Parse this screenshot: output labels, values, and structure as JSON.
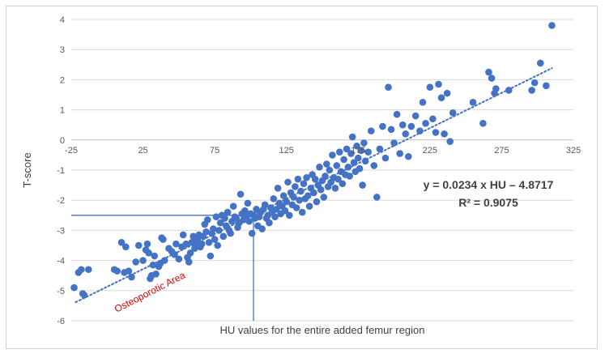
{
  "chart_data": {
    "type": "scatter",
    "title": "",
    "xlabel": "HU values for the entire added femur region",
    "ylabel": "T-score",
    "xlim": [
      -25,
      325
    ],
    "ylim": [
      -6,
      4
    ],
    "x_ticks": [
      "-25",
      "25",
      "75",
      "125",
      "175",
      "225",
      "275",
      "325"
    ],
    "x_tick_values": [
      -25,
      25,
      75,
      125,
      175,
      225,
      275,
      325
    ],
    "y_ticks": [
      "-6",
      "-5",
      "-4",
      "-3",
      "-2",
      "-1",
      "0",
      "1",
      "2",
      "3",
      "4"
    ],
    "y_tick_values": [
      -6,
      -5,
      -4,
      -3,
      -2,
      -1,
      0,
      1,
      2,
      3,
      4
    ],
    "grid": "horizontal",
    "marker_color": "#4472c4",
    "trendline": {
      "slope": 0.0234,
      "intercept": -4.8717,
      "x_range": [
        -22,
        310
      ],
      "style": "dotted",
      "color": "#4472c4"
    },
    "equation_line1": "y = 0.0234 x HU – 4.8717",
    "equation_line2": "R² = 0.9075",
    "annotation": {
      "text": "Osteoporotic Area",
      "color": "#e00000",
      "rotation_deg": -27
    },
    "reference_lines": {
      "color": "#4472c4",
      "horizontal_y": -2.5,
      "horizontal_x_range": [
        -25,
        102
      ],
      "vertical_x": 102,
      "vertical_y_range": [
        -6,
        -2.5
      ]
    },
    "series": [
      {
        "points": [
          [
            -23,
            -4.9
          ],
          [
            -20,
            -4.4
          ],
          [
            -18,
            -4.3
          ],
          [
            -17,
            -5.1
          ],
          [
            -16,
            -5.15
          ],
          [
            -13,
            -4.3
          ],
          [
            5,
            -4.3
          ],
          [
            7,
            -4.35
          ],
          [
            10,
            -3.4
          ],
          [
            12,
            -4.4
          ],
          [
            13,
            -3.55
          ],
          [
            15,
            -4.35
          ],
          [
            17,
            -4.55
          ],
          [
            20,
            -4.05
          ],
          [
            22,
            -3.5
          ],
          [
            25,
            -4.0
          ],
          [
            27,
            -3.65
          ],
          [
            28,
            -3.45
          ],
          [
            29,
            -3.75
          ],
          [
            30,
            -4.6
          ],
          [
            31,
            -4.5
          ],
          [
            32,
            -4.15
          ],
          [
            33,
            -3.85
          ],
          [
            34,
            -4.45
          ],
          [
            36,
            -4.2
          ],
          [
            37,
            -4.1
          ],
          [
            38,
            -3.25
          ],
          [
            39,
            -3.3
          ],
          [
            40,
            -4.0
          ],
          [
            43,
            -3.6
          ],
          [
            45,
            -3.7
          ],
          [
            47,
            -3.8
          ],
          [
            48,
            -3.45
          ],
          [
            50,
            -3.95
          ],
          [
            52,
            -3.55
          ],
          [
            53,
            -3.15
          ],
          [
            55,
            -3.45
          ],
          [
            56,
            -3.9
          ],
          [
            57,
            -4.05
          ],
          [
            58,
            -3.75
          ],
          [
            59,
            -3.4
          ],
          [
            60,
            -3.2
          ],
          [
            61,
            -3.6
          ],
          [
            62,
            -3.5
          ],
          [
            63,
            -3.3
          ],
          [
            64,
            -3.15
          ],
          [
            65,
            -3.55
          ],
          [
            66,
            -3.45
          ],
          [
            67,
            -3.2
          ],
          [
            68,
            -2.8
          ],
          [
            69,
            -3.05
          ],
          [
            70,
            -2.65
          ],
          [
            71,
            -3.4
          ],
          [
            72,
            -3.85
          ],
          [
            73,
            -3.1
          ],
          [
            74,
            -2.95
          ],
          [
            75,
            -3.3
          ],
          [
            76,
            -2.55
          ],
          [
            77,
            -3.5
          ],
          [
            78,
            -3.0
          ],
          [
            79,
            -2.75
          ],
          [
            80,
            -2.5
          ],
          [
            81,
            -3.2
          ],
          [
            82,
            -2.6
          ],
          [
            83,
            -2.85
          ],
          [
            84,
            -2.4
          ],
          [
            85,
            -3.0
          ],
          [
            86,
            -3.1
          ],
          [
            87,
            -2.7
          ],
          [
            88,
            -2.2
          ],
          [
            89,
            -2.55
          ],
          [
            90,
            -2.6
          ],
          [
            91,
            -2.9
          ],
          [
            92,
            -2.75
          ],
          [
            93,
            -1.8
          ],
          [
            94,
            -2.45
          ],
          [
            95,
            -2.65
          ],
          [
            96,
            -2.35
          ],
          [
            97,
            -2.55
          ],
          [
            98,
            -2.1
          ],
          [
            99,
            -2.7
          ],
          [
            100,
            -2.45
          ],
          [
            101,
            -3.1
          ],
          [
            102,
            -2.5
          ],
          [
            103,
            -2.6
          ],
          [
            104,
            -2.3
          ],
          [
            105,
            -2.85
          ],
          [
            106,
            -2.55
          ],
          [
            107,
            -2.4
          ],
          [
            108,
            -2.95
          ],
          [
            109,
            -2.3
          ],
          [
            110,
            -2.15
          ],
          [
            111,
            -2.6
          ],
          [
            112,
            -2.5
          ],
          [
            113,
            -2.75
          ],
          [
            114,
            -2.25
          ],
          [
            115,
            -2.4
          ],
          [
            116,
            -1.95
          ],
          [
            117,
            -2.55
          ],
          [
            118,
            -2.3
          ],
          [
            119,
            -1.6
          ],
          [
            120,
            -2.1
          ],
          [
            121,
            -2.45
          ],
          [
            122,
            -2.2
          ],
          [
            123,
            -1.85
          ],
          [
            124,
            -2.35
          ],
          [
            125,
            -2.05
          ],
          [
            126,
            -1.4
          ],
          [
            127,
            -2.5
          ],
          [
            128,
            -1.75
          ],
          [
            129,
            -2.15
          ],
          [
            130,
            -1.9
          ],
          [
            131,
            -1.55
          ],
          [
            132,
            -2.25
          ],
          [
            133,
            -1.3
          ],
          [
            134,
            -2.0
          ],
          [
            135,
            -1.7
          ],
          [
            136,
            -2.4
          ],
          [
            137,
            -1.45
          ],
          [
            138,
            -1.95
          ],
          [
            139,
            -1.25
          ],
          [
            140,
            -1.85
          ],
          [
            141,
            -2.2
          ],
          [
            142,
            -1.6
          ],
          [
            143,
            -1.15
          ],
          [
            144,
            -1.75
          ],
          [
            145,
            -1.3
          ],
          [
            146,
            -2.05
          ],
          [
            147,
            -1.5
          ],
          [
            148,
            -0.9
          ],
          [
            149,
            -1.65
          ],
          [
            150,
            -1.35
          ],
          [
            151,
            -1.9
          ],
          [
            152,
            -1.2
          ],
          [
            153,
            -0.8
          ],
          [
            154,
            -1.55
          ],
          [
            155,
            -1.0
          ],
          [
            156,
            -1.4
          ],
          [
            157,
            -0.5
          ],
          [
            158,
            -1.25
          ],
          [
            159,
            -1.6
          ],
          [
            160,
            -0.85
          ],
          [
            161,
            -1.3
          ],
          [
            162,
            -0.4
          ],
          [
            163,
            -1.05
          ],
          [
            164,
            -1.45
          ],
          [
            165,
            -0.65
          ],
          [
            166,
            -1.15
          ],
          [
            167,
            -0.3
          ],
          [
            168,
            -0.9
          ],
          [
            169,
            -1.2
          ],
          [
            170,
            -0.45
          ],
          [
            171,
            0.1
          ],
          [
            172,
            -0.75
          ],
          [
            173,
            -1.05
          ],
          [
            174,
            -0.2
          ],
          [
            175,
            -0.6
          ],
          [
            176,
            -0.95
          ],
          [
            177,
            -0.35
          ],
          [
            178,
            -1.5
          ],
          [
            179,
            -0.1
          ],
          [
            180,
            -0.7
          ],
          [
            182,
            -0.4
          ],
          [
            184,
            0.3
          ],
          [
            186,
            -0.85
          ],
          [
            188,
            -1.9
          ],
          [
            190,
            -0.3
          ],
          [
            192,
            0.45
          ],
          [
            194,
            -0.6
          ],
          [
            196,
            1.75
          ],
          [
            198,
            0.35
          ],
          [
            200,
            -0.1
          ],
          [
            202,
            0.85
          ],
          [
            204,
            -0.45
          ],
          [
            206,
            0.5
          ],
          [
            208,
            0.2
          ],
          [
            210,
            -0.55
          ],
          [
            212,
            0.45
          ],
          [
            215,
            0.8
          ],
          [
            218,
            0.3
          ],
          [
            220,
            1.25
          ],
          [
            222,
            0.55
          ],
          [
            225,
            1.75
          ],
          [
            227,
            0.7
          ],
          [
            229,
            0.25
          ],
          [
            231,
            1.85
          ],
          [
            233,
            1.4
          ],
          [
            235,
            0.2
          ],
          [
            237,
            1.55
          ],
          [
            239,
            -0.05
          ],
          [
            241,
            0.9
          ],
          [
            255,
            1.25
          ],
          [
            262,
            0.55
          ],
          [
            266,
            2.25
          ],
          [
            268,
            2.05
          ],
          [
            270,
            1.55
          ],
          [
            271,
            1.7
          ],
          [
            280,
            1.65
          ],
          [
            296,
            1.65
          ],
          [
            298,
            1.9
          ],
          [
            302,
            2.55
          ],
          [
            306,
            1.8
          ],
          [
            310,
            3.8
          ]
        ]
      }
    ]
  }
}
